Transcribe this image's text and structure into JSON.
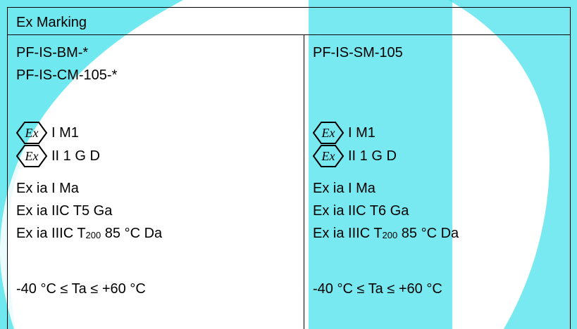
{
  "header": {
    "title": "Ex Marking"
  },
  "left": {
    "lines": [
      "PF-IS-BM-*",
      "PF-IS-CM-105-*"
    ],
    "ex_lines": [
      "I M1",
      "II 1 G D"
    ],
    "standards": [
      "Ex ia I Ma",
      "Ex ia IIC T5 Ga"
    ],
    "iiic": {
      "prefix": "Ex ia IIIC T",
      "subscript": "200",
      "suffix": " 85 °C Da"
    },
    "temp_range": "-40 °C ≤ Ta ≤ +60 °C"
  },
  "right": {
    "lines": [
      "PF-IS-SM-105"
    ],
    "ex_lines": [
      "I M1",
      "II 1 G D"
    ],
    "standards": [
      "Ex ia I Ma",
      "Ex ia IIC T6 Ga"
    ],
    "iiic": {
      "prefix": "Ex ia IIIC T",
      "subscript": "200",
      "suffix": " 85 °C Da"
    },
    "temp_range": "-40 °C ≤ Ta ≤ +60 °C"
  },
  "icons": {
    "ex_symbol": "ex-hexagon-icon"
  },
  "colors": {
    "watermark": "#45e1ec",
    "text": "#000000",
    "border": "#000000"
  }
}
